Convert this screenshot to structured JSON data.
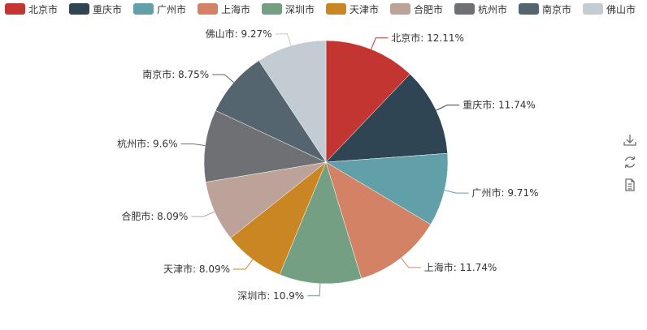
{
  "chart_data": {
    "type": "pie",
    "categories": [
      "北京市",
      "重庆市",
      "广州市",
      "上海市",
      "深圳市",
      "天津市",
      "合肥市",
      "杭州市",
      "南京市",
      "佛山市"
    ],
    "values": [
      12.11,
      11.74,
      9.71,
      11.74,
      10.9,
      8.09,
      8.09,
      9.6,
      8.75,
      9.27
    ],
    "labels": [
      "北京市: 12.11%",
      "重庆市: 11.74%",
      "广州市: 9.71%",
      "上海市: 11.74%",
      "深圳市: 10.9%",
      "天津市: 8.09%",
      "合肥市: 8.09%",
      "杭州市: 9.6%",
      "南京市: 8.75%",
      "佛山市: 9.27%"
    ],
    "colors": [
      "#c23531",
      "#2f4554",
      "#61a0a8",
      "#d48265",
      "#749f83",
      "#ca8622",
      "#bda29a",
      "#6e7074",
      "#546570",
      "#c4ccd3"
    ],
    "legend_position": "top",
    "title": ""
  },
  "toolbox": {
    "items": [
      {
        "name": "download-icon"
      },
      {
        "name": "refresh-icon"
      },
      {
        "name": "data-view-icon"
      }
    ]
  }
}
